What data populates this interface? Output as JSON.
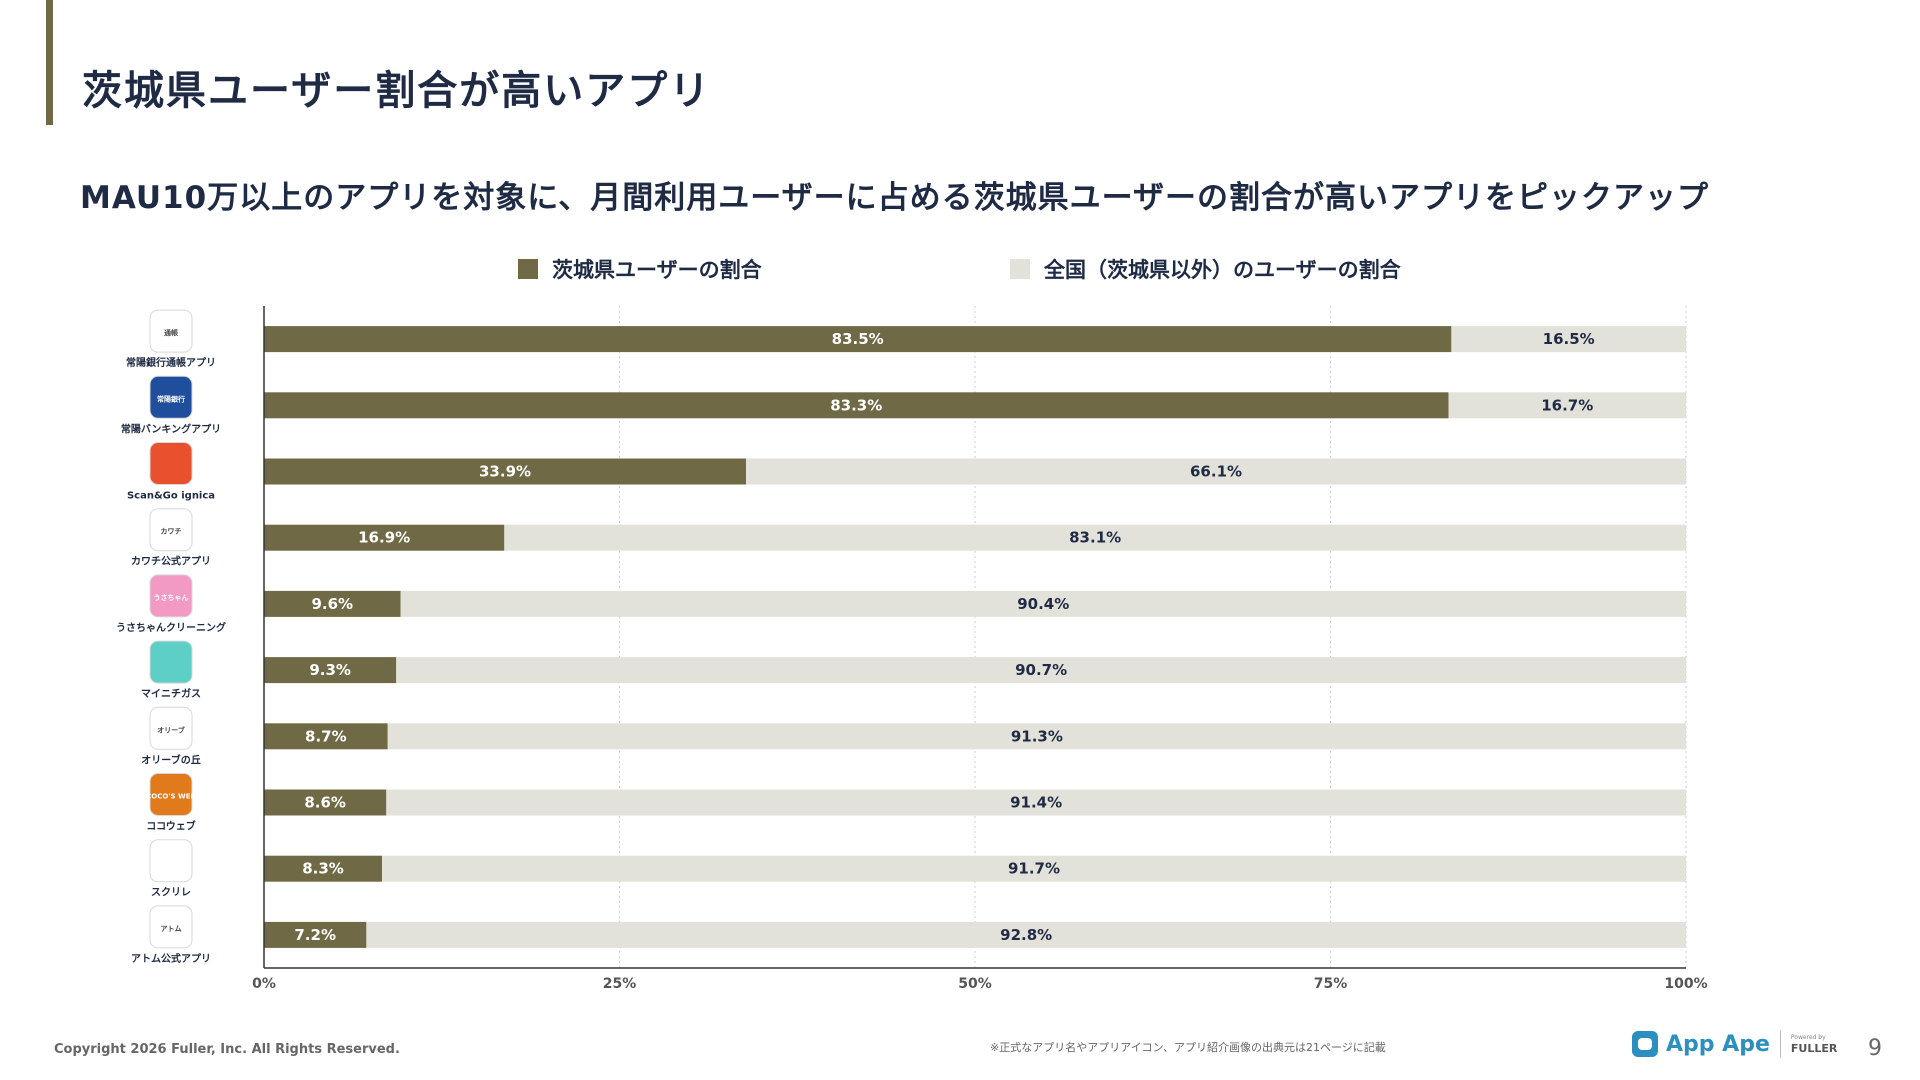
{
  "title": "茨城県ユーザー割合が高いアプリ",
  "subtitle": "MAU10万以上のアプリを対象に、月間利用ユーザーに占める茨城県ユーザーの割合が高いアプリをピックアップ",
  "legend": {
    "series_a": "茨城県ユーザーの割合",
    "series_b": "全国（茨城県以外）のユーザーの割合"
  },
  "colors": {
    "accent": "#6f6a45",
    "series_a": "#6f6a45",
    "series_b": "#e3e2da",
    "text_dark": "#1f2a44"
  },
  "chart_data": {
    "type": "bar",
    "orientation": "horizontal",
    "stacked": true,
    "categories": [
      "常陽銀行通帳アプリ",
      "常陽バンキングアプリ",
      "Scan&Go ignica",
      "カワチ公式アプリ",
      "うさちゃんクリーニング",
      "マイニチガス",
      "オリーブの丘",
      "ココウェブ",
      "スクリレ",
      "アトム公式アプリ"
    ],
    "series": [
      {
        "name": "茨城県ユーザーの割合",
        "values": [
          83.5,
          83.3,
          33.9,
          16.9,
          9.6,
          9.3,
          8.7,
          8.6,
          8.3,
          7.2
        ]
      },
      {
        "name": "全国（茨城県以外）のユーザーの割合",
        "values": [
          16.5,
          16.7,
          66.1,
          83.1,
          90.4,
          90.7,
          91.3,
          91.4,
          91.7,
          92.8
        ]
      }
    ],
    "value_labels_a": [
      "83.5%",
      "83.3%",
      "33.9%",
      "16.9%",
      "9.6%",
      "9.3%",
      "8.7%",
      "8.6%",
      "8.3%",
      "7.2%"
    ],
    "value_labels_b": [
      "16.5%",
      "16.7%",
      "66.1%",
      "83.1%",
      "90.4%",
      "90.7%",
      "91.3%",
      "91.4%",
      "91.7%",
      "92.8%"
    ],
    "xlim": [
      0,
      100
    ],
    "xticks": [
      0,
      25,
      50,
      75,
      100
    ],
    "xtick_labels": [
      "0%",
      "25%",
      "50%",
      "75%",
      "100%"
    ],
    "grid": true,
    "legend_position": "top"
  },
  "app_icons": [
    {
      "name": "passbook-icon",
      "color": "#ffffff",
      "text": "通帳"
    },
    {
      "name": "bank-icon",
      "color": "#1e4e9c",
      "text": "常陽銀行"
    },
    {
      "name": "cart-icon",
      "color": "#e8502e",
      "text": ""
    },
    {
      "name": "kawachi-icon",
      "color": "#ffffff",
      "text": "カワチ"
    },
    {
      "name": "rabbit-icon",
      "color": "#f29ac4",
      "text": "うさちゃん"
    },
    {
      "name": "gas-icon",
      "color": "#5dcfc6",
      "text": ""
    },
    {
      "name": "olive-icon",
      "color": "#ffffff",
      "text": "オリーブ"
    },
    {
      "name": "cocos-icon",
      "color": "#e07a1a",
      "text": "COCO'S WEB"
    },
    {
      "name": "school-icon",
      "color": "#ffffff",
      "text": ""
    },
    {
      "name": "atom-icon",
      "color": "#ffffff",
      "text": "アトム"
    }
  ],
  "footer": {
    "copyright": "Copyright 2026 Fuller, Inc. All Rights Reserved.",
    "note": "※正式なアプリ名やアプリアイコン、アプリ紹介画像の出典元は21ページに記載",
    "brand_name": "App Ape",
    "brand_powered": "Powered by",
    "brand_company": "FULLER",
    "page_number": "9"
  }
}
